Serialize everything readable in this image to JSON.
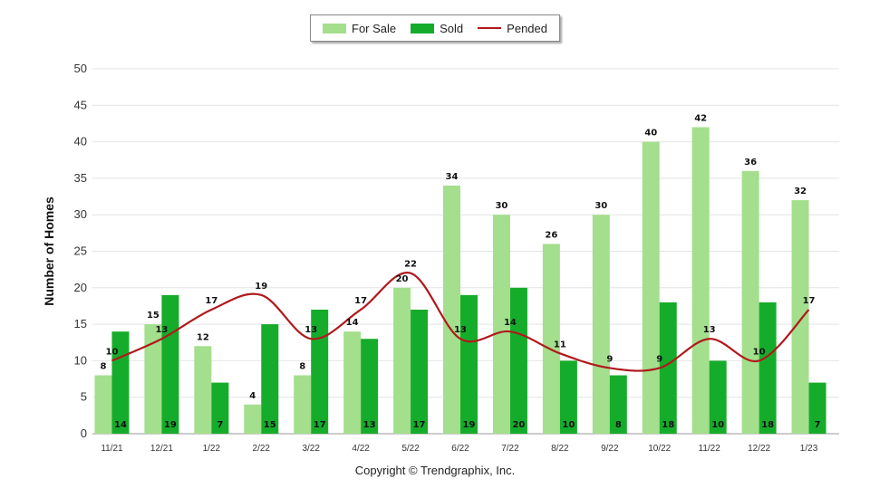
{
  "chart_data": {
    "type": "bar",
    "title": "",
    "xlabel": "",
    "ylabel": "Number of Homes",
    "ylim": [
      0,
      50
    ],
    "yticks": [
      0,
      5,
      10,
      15,
      20,
      25,
      30,
      35,
      40,
      45,
      50
    ],
    "categories": [
      "11/21",
      "12/21",
      "1/22",
      "2/22",
      "3/22",
      "4/22",
      "5/22",
      "6/22",
      "7/22",
      "8/22",
      "9/22",
      "10/22",
      "11/22",
      "12/22",
      "1/23"
    ],
    "series": [
      {
        "name": "For Sale",
        "type": "bar",
        "color": "#a3df8c",
        "values": [
          8,
          15,
          12,
          4,
          8,
          14,
          20,
          34,
          30,
          26,
          30,
          40,
          42,
          36,
          32
        ]
      },
      {
        "name": "Sold",
        "type": "bar",
        "color": "#16ac2b",
        "values": [
          14,
          19,
          7,
          15,
          17,
          13,
          17,
          19,
          20,
          10,
          8,
          18,
          10,
          18,
          7
        ]
      },
      {
        "name": "Pended",
        "type": "line",
        "color": "#b0191c",
        "values": [
          10,
          13,
          17,
          19,
          13,
          17,
          22,
          13,
          14,
          11,
          9,
          9,
          13,
          10,
          17
        ]
      }
    ],
    "legend": "top-center",
    "grid": true,
    "footer": "Copyright © Trendgraphix, Inc."
  }
}
